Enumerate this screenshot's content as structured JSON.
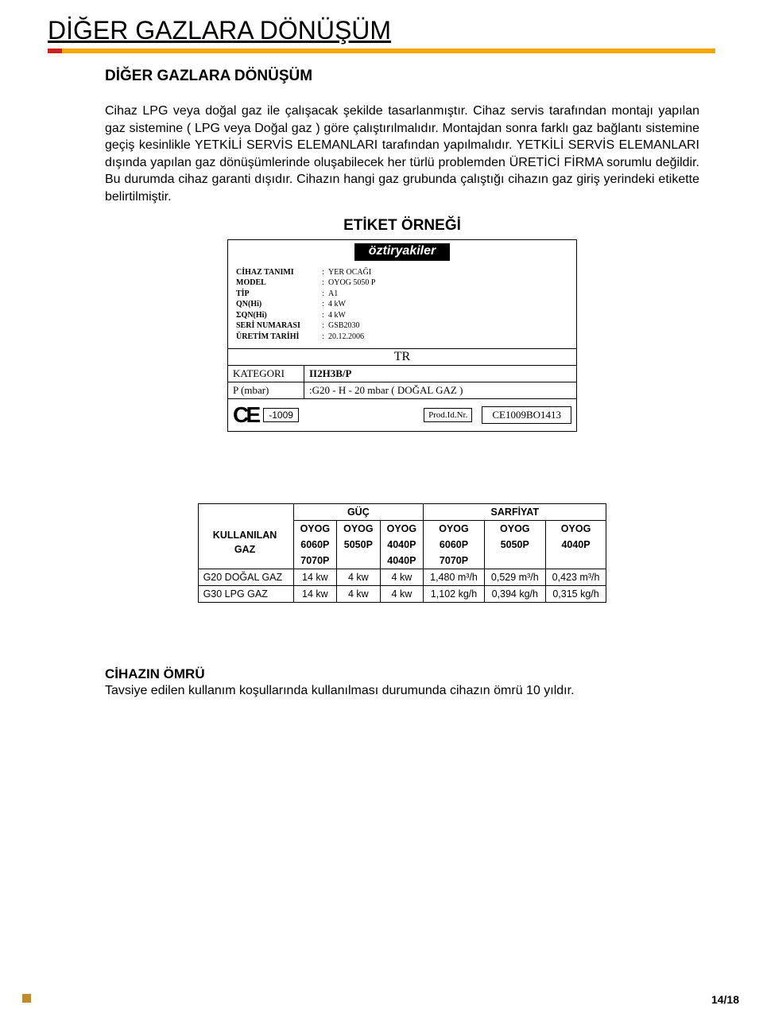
{
  "title": "DİĞER GAZLARA DÖNÜŞÜM",
  "subtitle": "DİĞER GAZLARA DÖNÜŞÜM",
  "body": "Cihaz LPG veya doğal gaz ile çalışacak şekilde tasarlanmıştır. Cihaz servis tarafından montajı yapılan gaz sistemine    ( LPG veya Doğal gaz ) göre çalıştırılmalıdır. Montajdan sonra farklı gaz bağlantı sistemine geçiş kesinlikle YETKİLİ SERVİS ELEMANLARI tarafından yapılmalıdır. YETKİLİ SERVİS ELEMANLARI dışında yapılan gaz dönüşümlerinde oluşabilecek her türlü problemden ÜRETİCİ FİRMA sorumlu değildir. Bu durumda cihaz garanti dışıdır. Cihazın hangi gaz grubunda çalıştığı cihazın gaz giriş yerindeki etikette belirtilmiştir.",
  "etiket_heading": "ETİKET ÖRNEĞİ",
  "etiket": {
    "brand": "öztiryakiler",
    "rows": [
      {
        "k": "CİHAZ TANIMI",
        "v": "YER OCAĞI"
      },
      {
        "k": "MODEL",
        "v": "OYOG 5050 P"
      },
      {
        "k": "TİP",
        "v": "A1"
      },
      {
        "k": "QN(Hi)",
        "v": "4 kW"
      },
      {
        "k": "ΣQN(Hi)",
        "v": "4 kW"
      },
      {
        "k": "SERİ NUMARASI",
        "v": "GSB2030"
      },
      {
        "k": "ÜRETİM TARİHİ",
        "v": "20.12.2006"
      }
    ],
    "tr": "TR",
    "kategori_label": "KATEGORI",
    "kategori_value": "II2H3B/P",
    "p_label": "P (mbar)",
    "p_value": ":G20 - H - 20 mbar ( DOĞAL GAZ )",
    "ce_num": "-1009",
    "prod_label": "Prod.Id.Nr.",
    "prod_value": "CE1009BO1413"
  },
  "table": {
    "guc": "GÜÇ",
    "sarfiyat": "SARFİYAT",
    "header_cells": [
      "OYOG 6060P 7070P",
      "OYOG 5050P",
      "OYOG 4040P 4040P",
      "OYOG 6060P 7070P",
      "OYOG 5050P",
      "OYOG 4040P"
    ],
    "col_labels": {
      "kullanilan": "KULLANILAN",
      "gaz": "GAZ"
    },
    "models_line1": [
      "OYOG",
      "OYOG",
      "OYOG",
      "OYOG",
      "OYOG",
      "OYOG"
    ],
    "models_line2": [
      "6060P",
      "5050P",
      "4040P",
      "6060P",
      "5050P",
      "4040P"
    ],
    "models_line3": [
      "7070P",
      "",
      "4040P",
      "7070P",
      "",
      ""
    ],
    "rows": [
      {
        "label": "G20 DOĞAL GAZ",
        "cells": [
          "14 kw",
          "4 kw",
          "4 kw",
          "1,480 m³/h",
          "0,529 m³/h",
          "0,423 m³/h"
        ]
      },
      {
        "label": "G30 LPG GAZ",
        "cells": [
          "14 kw",
          "4 kw",
          "4 kw",
          "1,102 kg/h",
          "0,394 kg/h",
          "0,315 kg/h"
        ]
      }
    ]
  },
  "footer": {
    "heading": "CİHAZIN ÖMRÜ",
    "text": "Tavsiye edilen kullanım koşullarında kullanılması durumunda cihazın ömrü  10 yıldır."
  },
  "page_num": "14/18"
}
